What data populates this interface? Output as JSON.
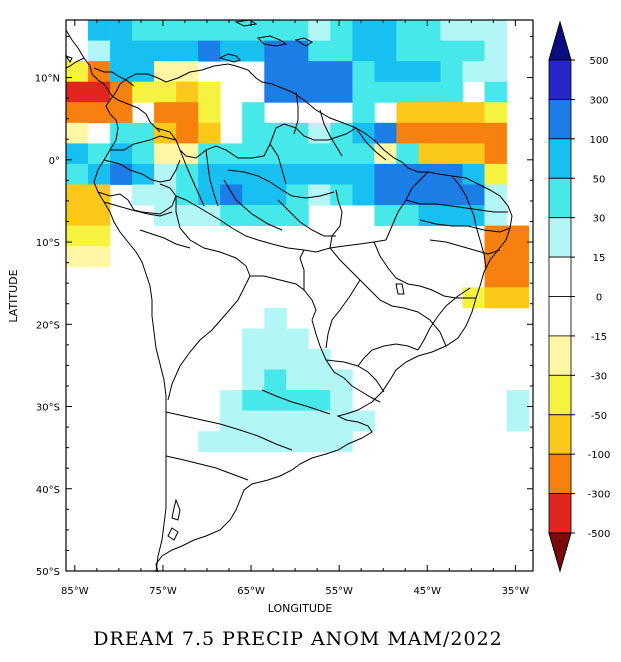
{
  "title": "DREAM 7.5 PRECIP ANOM MAM/2022",
  "axes": {
    "xlabel": "LONGITUDE",
    "ylabel": "LATITUDE",
    "lon_ticks": [
      {
        "value": -85,
        "label": "85°W"
      },
      {
        "value": -75,
        "label": "75°W"
      },
      {
        "value": -65,
        "label": "65°W"
      },
      {
        "value": -55,
        "label": "55°W"
      },
      {
        "value": -45,
        "label": "45°W"
      },
      {
        "value": -35,
        "label": "35°W"
      }
    ],
    "lat_ticks": [
      {
        "value": 10,
        "label": "10°N"
      },
      {
        "value": 0,
        "label": "0°"
      },
      {
        "value": -10,
        "label": "10°S"
      },
      {
        "value": -20,
        "label": "20°S"
      },
      {
        "value": -30,
        "label": "30°S"
      },
      {
        "value": -40,
        "label": "40°S"
      },
      {
        "value": -50,
        "label": "50°S"
      }
    ]
  },
  "colorbar": {
    "labels": [
      "500",
      "300",
      "100",
      "50",
      "30",
      "15",
      "0",
      "-15",
      "-30",
      "-50",
      "-100",
      "-300",
      "-500"
    ],
    "bins": [
      {
        "key": "gt300",
        "color": "#2626c8"
      },
      {
        "key": "100_300",
        "color": "#1c7de6"
      },
      {
        "key": "50_100",
        "color": "#18c0f2"
      },
      {
        "key": "30_50",
        "color": "#46e8ea"
      },
      {
        "key": "15_30",
        "color": "#b2f6f6"
      },
      {
        "key": "w1",
        "color": "#ffffff"
      },
      {
        "key": "w2",
        "color": "#ffffff"
      },
      {
        "key": "m15_m30",
        "color": "#fff6a6"
      },
      {
        "key": "m30_m50",
        "color": "#f6f240"
      },
      {
        "key": "m50_m100",
        "color": "#fcc81a"
      },
      {
        "key": "m100_m300",
        "color": "#f7800e"
      },
      {
        "key": "m300_m500",
        "color": "#e1261e"
      }
    ],
    "top_triangle_color": "#0c0c82",
    "bottom_triangle_color": "#7a0c0c"
  },
  "chart_data": {
    "type": "heatmap",
    "title": "DREAM 7.5 PRECIP ANOM MAM/2022",
    "xlabel": "LONGITUDE",
    "ylabel": "LATITUDE",
    "lon_range": [
      -86,
      -33
    ],
    "lat_range": [
      -50,
      17
    ],
    "cell_size_deg": 2.5,
    "origin": {
      "lon": -86,
      "lat": 17
    },
    "color_levels": [
      -500,
      -300,
      -100,
      -50,
      -30,
      -15,
      0,
      15,
      30,
      50,
      100,
      300,
      500
    ],
    "rows": [
      "...5777666667766666",
      "..4444443777777777",
      "2..32...277777777",
      "...2.........777766",
      "99+1.##....7...666656",
      "99##1+1##...6.....6",
      "##9##+9##......7.7.#####",
      "......####....6....7.######",
      "3.8##.#.6.66666....7.6.##5#",
      "##5#33.55666666666666.77.5#",
      "###.5###.5555##55#7766666.",
      "............................"
    ]
  },
  "cells": [
    [
      0,
      1,
      "50_100"
    ],
    [
      0,
      2,
      "50_100"
    ],
    [
      0,
      3,
      "30_50"
    ],
    [
      0,
      4,
      "30_50"
    ],
    [
      0,
      5,
      "30_50"
    ],
    [
      0,
      6,
      "30_50"
    ],
    [
      0,
      7,
      "30_50"
    ],
    [
      0,
      8,
      "30_50"
    ],
    [
      0,
      9,
      "30_50"
    ],
    [
      0,
      10,
      "30_50"
    ],
    [
      0,
      11,
      "15_30"
    ],
    [
      0,
      12,
      "30_50"
    ],
    [
      0,
      13,
      "50_100"
    ],
    [
      0,
      14,
      "50_100"
    ],
    [
      0,
      15,
      "30_50"
    ],
    [
      0,
      16,
      "30_50"
    ],
    [
      0,
      17,
      "15_30"
    ],
    [
      0,
      18,
      "15_30"
    ],
    [
      0,
      19,
      "15_30"
    ],
    [
      1,
      1,
      "15_30"
    ],
    [
      1,
      2,
      "50_100"
    ],
    [
      1,
      3,
      "50_100"
    ],
    [
      1,
      4,
      "50_100"
    ],
    [
      1,
      5,
      "50_100"
    ],
    [
      1,
      6,
      "100_300"
    ],
    [
      1,
      7,
      "50_100"
    ],
    [
      1,
      8,
      "50_100"
    ],
    [
      1,
      9,
      "100_300"
    ],
    [
      1,
      10,
      "100_300"
    ],
    [
      1,
      11,
      "30_50"
    ],
    [
      1,
      12,
      "30_50"
    ],
    [
      1,
      13,
      "50_100"
    ],
    [
      1,
      14,
      "50_100"
    ],
    [
      1,
      15,
      "30_50"
    ],
    [
      1,
      16,
      "30_50"
    ],
    [
      1,
      17,
      "30_50"
    ],
    [
      1,
      18,
      "30_50"
    ],
    [
      1,
      19,
      "15_30"
    ],
    [
      2,
      0,
      "m30_m50"
    ],
    [
      2,
      1,
      "m100_m300"
    ],
    [
      2,
      2,
      "50_100"
    ],
    [
      2,
      3,
      "50_100"
    ],
    [
      2,
      4,
      "m15_m30"
    ],
    [
      2,
      5,
      "m15_m30"
    ],
    [
      2,
      9,
      "100_300"
    ],
    [
      2,
      10,
      "100_300"
    ],
    [
      2,
      11,
      "100_300"
    ],
    [
      2,
      12,
      "100_300"
    ],
    [
      2,
      13,
      "30_50"
    ],
    [
      2,
      14,
      "50_100"
    ],
    [
      2,
      15,
      "50_100"
    ],
    [
      2,
      16,
      "50_100"
    ],
    [
      2,
      17,
      "30_50"
    ],
    [
      2,
      18,
      "15_30"
    ],
    [
      2,
      19,
      "15_30"
    ],
    [
      3,
      0,
      "m300_m500"
    ],
    [
      3,
      1,
      "m300_m500"
    ],
    [
      3,
      2,
      "m100_m300"
    ],
    [
      3,
      3,
      "m30_m50"
    ],
    [
      3,
      4,
      "m30_m50"
    ],
    [
      3,
      5,
      "m50_m100"
    ],
    [
      3,
      6,
      "m30_m50"
    ],
    [
      3,
      9,
      "100_300"
    ],
    [
      3,
      10,
      "100_300"
    ],
    [
      3,
      11,
      "100_300"
    ],
    [
      3,
      12,
      "100_300"
    ],
    [
      3,
      13,
      "30_50"
    ],
    [
      3,
      14,
      "30_50"
    ],
    [
      3,
      15,
      "30_50"
    ],
    [
      3,
      16,
      "30_50"
    ],
    [
      3,
      17,
      "30_50"
    ],
    [
      3,
      19,
      "30_50"
    ],
    [
      4,
      0,
      "m100_m300"
    ],
    [
      4,
      1,
      "m100_m300"
    ],
    [
      4,
      2,
      "m100_m300"
    ],
    [
      4,
      4,
      "m100_m300"
    ],
    [
      4,
      5,
      "m100_m300"
    ],
    [
      4,
      6,
      "m30_m50"
    ],
    [
      4,
      8,
      "30_50"
    ],
    [
      4,
      13,
      "30_50"
    ],
    [
      4,
      15,
      "m50_m100"
    ],
    [
      4,
      16,
      "m50_m100"
    ],
    [
      4,
      17,
      "m50_m100"
    ],
    [
      4,
      18,
      "m50_m100"
    ],
    [
      4,
      19,
      "m30_m50"
    ],
    [
      5,
      0,
      "m15_m30"
    ],
    [
      5,
      2,
      "30_50"
    ],
    [
      5,
      3,
      "30_50"
    ],
    [
      5,
      4,
      "m50_m100"
    ],
    [
      5,
      5,
      "m100_m300"
    ],
    [
      5,
      6,
      "m50_m100"
    ],
    [
      5,
      8,
      "30_50"
    ],
    [
      5,
      9,
      "30_50"
    ],
    [
      5,
      10,
      "30_50"
    ],
    [
      5,
      11,
      "15_30"
    ],
    [
      5,
      12,
      "30_50"
    ],
    [
      5,
      13,
      "50_100"
    ],
    [
      5,
      14,
      "100_300"
    ],
    [
      5,
      15,
      "m100_m300"
    ],
    [
      5,
      16,
      "m100_m300"
    ],
    [
      5,
      17,
      "m100_m300"
    ],
    [
      5,
      18,
      "m100_m300"
    ],
    [
      5,
      19,
      "m100_m300"
    ],
    [
      6,
      0,
      "50_100"
    ],
    [
      6,
      1,
      "30_50"
    ],
    [
      6,
      2,
      "50_100"
    ],
    [
      6,
      3,
      "30_50"
    ],
    [
      6,
      4,
      "m15_m30"
    ],
    [
      6,
      5,
      "m15_m30"
    ],
    [
      6,
      6,
      "30_50"
    ],
    [
      6,
      7,
      "30_50"
    ],
    [
      6,
      8,
      "30_50"
    ],
    [
      6,
      9,
      "30_50"
    ],
    [
      6,
      10,
      "30_50"
    ],
    [
      6,
      11,
      "30_50"
    ],
    [
      6,
      12,
      "30_50"
    ],
    [
      6,
      13,
      "30_50"
    ],
    [
      6,
      14,
      "m15_m30"
    ],
    [
      6,
      15,
      "30_50"
    ],
    [
      6,
      16,
      "m50_m100"
    ],
    [
      6,
      17,
      "m50_m100"
    ],
    [
      6,
      18,
      "m50_m100"
    ],
    [
      6,
      19,
      "m100_m300"
    ],
    [
      7,
      0,
      "30_50"
    ],
    [
      7,
      1,
      "50_100"
    ],
    [
      7,
      2,
      "100_300"
    ],
    [
      7,
      3,
      "50_100"
    ],
    [
      7,
      4,
      "15_30"
    ],
    [
      7,
      5,
      "30_50"
    ],
    [
      7,
      6,
      "50_100"
    ],
    [
      7,
      7,
      "50_100"
    ],
    [
      7,
      8,
      "50_100"
    ],
    [
      7,
      9,
      "50_100"
    ],
    [
      7,
      10,
      "50_100"
    ],
    [
      7,
      11,
      "50_100"
    ],
    [
      7,
      12,
      "50_100"
    ],
    [
      7,
      13,
      "50_100"
    ],
    [
      7,
      14,
      "100_300"
    ],
    [
      7,
      15,
      "100_300"
    ],
    [
      7,
      16,
      "100_300"
    ],
    [
      7,
      17,
      "100_300"
    ],
    [
      7,
      18,
      "50_100"
    ],
    [
      7,
      19,
      "m30_m50"
    ],
    [
      8,
      0,
      "m50_m100"
    ],
    [
      8,
      1,
      "m50_m100"
    ],
    [
      8,
      3,
      "15_30"
    ],
    [
      8,
      4,
      "15_30"
    ],
    [
      8,
      5,
      "30_50"
    ],
    [
      8,
      6,
      "50_100"
    ],
    [
      8,
      7,
      "100_300"
    ],
    [
      8,
      8,
      "50_100"
    ],
    [
      8,
      9,
      "50_100"
    ],
    [
      8,
      10,
      "30_50"
    ],
    [
      8,
      11,
      "15_30"
    ],
    [
      8,
      12,
      "30_50"
    ],
    [
      8,
      13,
      "50_100"
    ],
    [
      8,
      14,
      "100_300"
    ],
    [
      8,
      15,
      "100_300"
    ],
    [
      8,
      16,
      "100_300"
    ],
    [
      8,
      17,
      "100_300"
    ],
    [
      8,
      18,
      "100_300"
    ],
    [
      8,
      19,
      "15_30"
    ],
    [
      9,
      0,
      "m50_m100"
    ],
    [
      9,
      1,
      "m50_m100"
    ],
    [
      9,
      4,
      "15_30"
    ],
    [
      9,
      5,
      "15_30"
    ],
    [
      9,
      6,
      "15_30"
    ],
    [
      9,
      7,
      "30_50"
    ],
    [
      9,
      8,
      "30_50"
    ],
    [
      9,
      9,
      "30_50"
    ],
    [
      9,
      10,
      "30_50"
    ],
    [
      9,
      14,
      "30_50"
    ],
    [
      9,
      15,
      "30_50"
    ],
    [
      9,
      16,
      "50_100"
    ],
    [
      9,
      17,
      "50_100"
    ],
    [
      9,
      18,
      "50_100"
    ],
    [
      9,
      19,
      "15_30"
    ],
    [
      10,
      0,
      "m30_m50"
    ],
    [
      10,
      1,
      "m30_m50"
    ],
    [
      10,
      19,
      "m100_m300"
    ],
    [
      10,
      20,
      "m100_m300"
    ],
    [
      11,
      0,
      "m15_m30"
    ],
    [
      11,
      1,
      "m15_m30"
    ],
    [
      11,
      19,
      "m100_m300"
    ],
    [
      11,
      20,
      "m100_m300"
    ],
    [
      12,
      19,
      "m100_m300"
    ],
    [
      12,
      20,
      "m100_m300"
    ],
    [
      13,
      18,
      "m30_m50"
    ],
    [
      13,
      19,
      "m50_m100"
    ],
    [
      13,
      20,
      "m50_m100"
    ],
    [
      14,
      9,
      "15_30"
    ],
    [
      15,
      8,
      "15_30"
    ],
    [
      15,
      9,
      "15_30"
    ],
    [
      15,
      10,
      "15_30"
    ],
    [
      16,
      8,
      "15_30"
    ],
    [
      16,
      9,
      "15_30"
    ],
    [
      16,
      10,
      "15_30"
    ],
    [
      16,
      11,
      "15_30"
    ],
    [
      17,
      8,
      "15_30"
    ],
    [
      17,
      9,
      "30_50"
    ],
    [
      17,
      10,
      "15_30"
    ],
    [
      17,
      11,
      "15_30"
    ],
    [
      17,
      12,
      "15_30"
    ],
    [
      18,
      7,
      "15_30"
    ],
    [
      18,
      8,
      "30_50"
    ],
    [
      18,
      9,
      "30_50"
    ],
    [
      18,
      10,
      "30_50"
    ],
    [
      18,
      11,
      "30_50"
    ],
    [
      18,
      12,
      "15_30"
    ],
    [
      18,
      20,
      "15_30"
    ],
    [
      19,
      7,
      "15_30"
    ],
    [
      19,
      8,
      "15_30"
    ],
    [
      19,
      9,
      "15_30"
    ],
    [
      19,
      10,
      "15_30"
    ],
    [
      19,
      11,
      "15_30"
    ],
    [
      19,
      12,
      "15_30"
    ],
    [
      19,
      13,
      "15_30"
    ],
    [
      19,
      20,
      "15_30"
    ],
    [
      20,
      6,
      "15_30"
    ],
    [
      20,
      7,
      "15_30"
    ],
    [
      20,
      8,
      "15_30"
    ],
    [
      20,
      9,
      "15_30"
    ],
    [
      20,
      10,
      "15_30"
    ],
    [
      20,
      11,
      "15_30"
    ],
    [
      20,
      12,
      "15_30"
    ]
  ]
}
